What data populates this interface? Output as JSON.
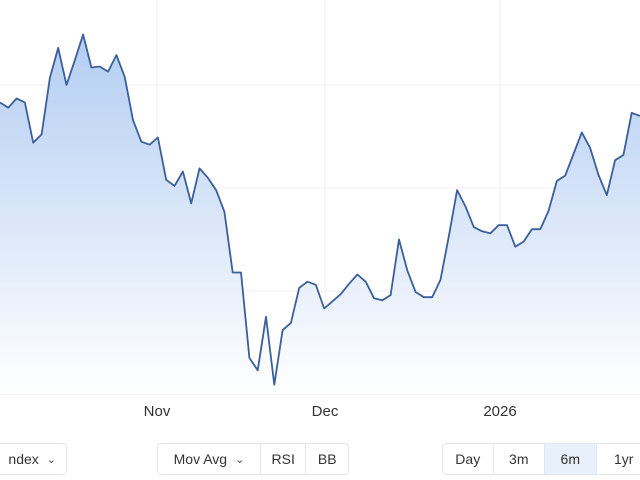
{
  "chart_data": {
    "type": "area",
    "title": "",
    "xlabel": "",
    "ylabel": "",
    "x_tick_labels": [
      "Nov",
      "Dec",
      "2026"
    ],
    "grid": true,
    "ylim": [
      0,
      380
    ],
    "y_gridlines": [
      100,
      200,
      300
    ],
    "line_color": "#3b5f9a",
    "fill_color": "#bcd4f4",
    "values": [
      283,
      278,
      287,
      283,
      244,
      252,
      307,
      336,
      300,
      324,
      349,
      317,
      318,
      313,
      329,
      308,
      266,
      245,
      242,
      249,
      208,
      202,
      216,
      185,
      219,
      210,
      198,
      177,
      118,
      118,
      35,
      23,
      75,
      9,
      62,
      69,
      103,
      109,
      106,
      83,
      90,
      97,
      107,
      116,
      109,
      93,
      91,
      96,
      150,
      120,
      99,
      94,
      94,
      111,
      153,
      198,
      182,
      162,
      158,
      156,
      164,
      164,
      143,
      148,
      160,
      160,
      178,
      207,
      212,
      233,
      254,
      239,
      213,
      193,
      227,
      232,
      273,
      270
    ]
  },
  "controls": {
    "index_select": {
      "label": "Index",
      "visible_text": "ndex"
    },
    "indicators": {
      "mov_avg": "Mov Avg",
      "rsi": "RSI",
      "bb": "BB"
    },
    "ranges": [
      {
        "label": "Day",
        "selected": false
      },
      {
        "label": "3m",
        "selected": false
      },
      {
        "label": "6m",
        "selected": true
      },
      {
        "label": "1yr",
        "selected": false
      }
    ]
  }
}
